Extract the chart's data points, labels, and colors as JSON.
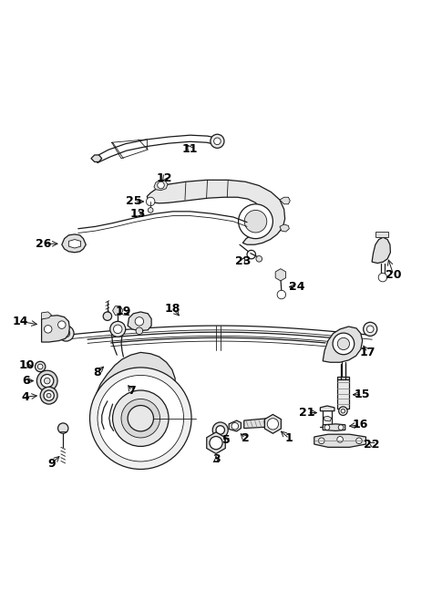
{
  "bg": "#ffffff",
  "lc": "#1a1a1a",
  "fig_w": 4.74,
  "fig_h": 6.48,
  "dpi": 100,
  "label_positions": {
    "1": [
      0.68,
      0.108,
      0.7,
      0.125
    ],
    "2": [
      0.64,
      0.13,
      0.63,
      0.148
    ],
    "3": [
      0.57,
      0.065,
      0.57,
      0.05
    ],
    "4": [
      0.085,
      0.22,
      0.068,
      0.22
    ],
    "5": [
      0.58,
      0.165,
      0.562,
      0.178
    ],
    "6": [
      0.072,
      0.28,
      0.052,
      0.28
    ],
    "7": [
      0.268,
      0.272,
      0.285,
      0.258
    ],
    "8": [
      0.24,
      0.31,
      0.222,
      0.322
    ],
    "9": [
      0.118,
      0.13,
      0.118,
      0.11
    ],
    "10": [
      0.072,
      0.31,
      0.052,
      0.31
    ],
    "11": [
      0.43,
      0.845,
      0.415,
      0.828
    ],
    "12": [
      0.368,
      0.74,
      0.388,
      0.752
    ],
    "13": [
      0.31,
      0.688,
      0.33,
      0.7
    ],
    "14": [
      0.062,
      0.418,
      0.045,
      0.418
    ],
    "15": [
      0.808,
      0.268,
      0.828,
      0.268
    ],
    "16": [
      0.808,
      0.198,
      0.828,
      0.198
    ],
    "17": [
      0.808,
      0.355,
      0.828,
      0.355
    ],
    "18": [
      0.395,
      0.455,
      0.395,
      0.472
    ],
    "19": [
      0.318,
      0.432,
      0.302,
      0.445
    ],
    "20": [
      0.875,
      0.538,
      0.892,
      0.538
    ],
    "21": [
      0.668,
      0.228,
      0.648,
      0.228
    ],
    "22": [
      0.808,
      0.148,
      0.828,
      0.148
    ],
    "23": [
      0.565,
      0.612,
      0.565,
      0.595
    ],
    "24": [
      0.668,
      0.518,
      0.688,
      0.518
    ],
    "25": [
      0.298,
      0.718,
      0.278,
      0.718
    ],
    "26": [
      0.068,
      0.592,
      0.048,
      0.592
    ]
  }
}
